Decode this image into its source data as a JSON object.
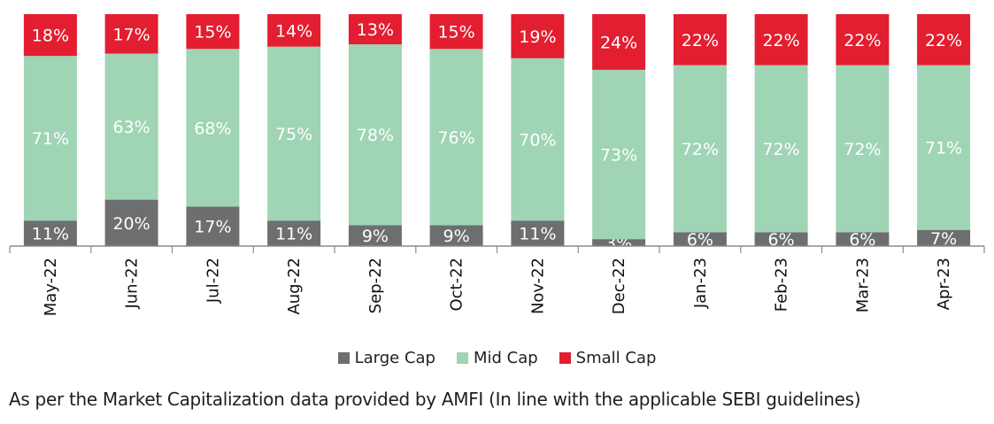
{
  "chart_data": {
    "type": "bar",
    "stacked": true,
    "categories": [
      "May-22",
      "Jun-22",
      "Jul-22",
      "Aug-22",
      "Sep-22",
      "Oct-22",
      "Nov-22",
      "Dec-22",
      "Jan-23",
      "Feb-23",
      "Mar-23",
      "Apr-23"
    ],
    "series": [
      {
        "name": "Large Cap",
        "color": "#6d6e70",
        "values": [
          11,
          20,
          17,
          11,
          9,
          9,
          11,
          3,
          6,
          6,
          6,
          7
        ],
        "labels": [
          "11%",
          "20%",
          "17%",
          "11%",
          "9%",
          "9%",
          "11%",
          "3%",
          "6%",
          "6%",
          "6%",
          "7%"
        ]
      },
      {
        "name": "Mid Cap",
        "color": "#9fd4b5",
        "values": [
          71,
          63,
          68,
          75,
          78,
          76,
          70,
          73,
          72,
          72,
          72,
          71
        ],
        "labels": [
          "71%",
          "63%",
          "68%",
          "75%",
          "78%",
          "76%",
          "70%",
          "73%",
          "72%",
          "72%",
          "72%",
          "71%"
        ]
      },
      {
        "name": "Small Cap",
        "color": "#e31e30",
        "values": [
          18,
          17,
          15,
          14,
          13,
          15,
          19,
          24,
          22,
          22,
          22,
          22
        ],
        "labels": [
          "18%",
          "17%",
          "15%",
          "14%",
          "13%",
          "15%",
          "19%",
          "24%",
          "22%",
          "22%",
          "22%",
          "22%"
        ]
      }
    ],
    "ylim": [
      0,
      100
    ],
    "grid": false,
    "legend_position": "bottom"
  },
  "footnote": "As per the Market Capitalization data provided by AMFI (In line with the applicable SEBI guidelines)"
}
